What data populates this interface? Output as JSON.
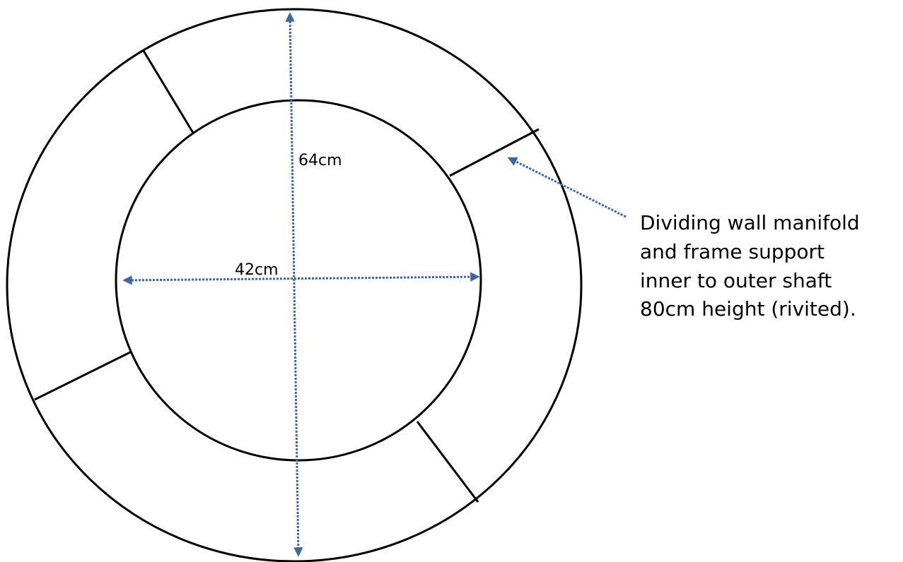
{
  "dimensions": {
    "height": "64cm",
    "width": "42cm"
  },
  "annotation": {
    "lines": [
      "Dividing wall manifold",
      "and frame support",
      "inner to outer shaft",
      "80cm height (rivited)."
    ]
  }
}
